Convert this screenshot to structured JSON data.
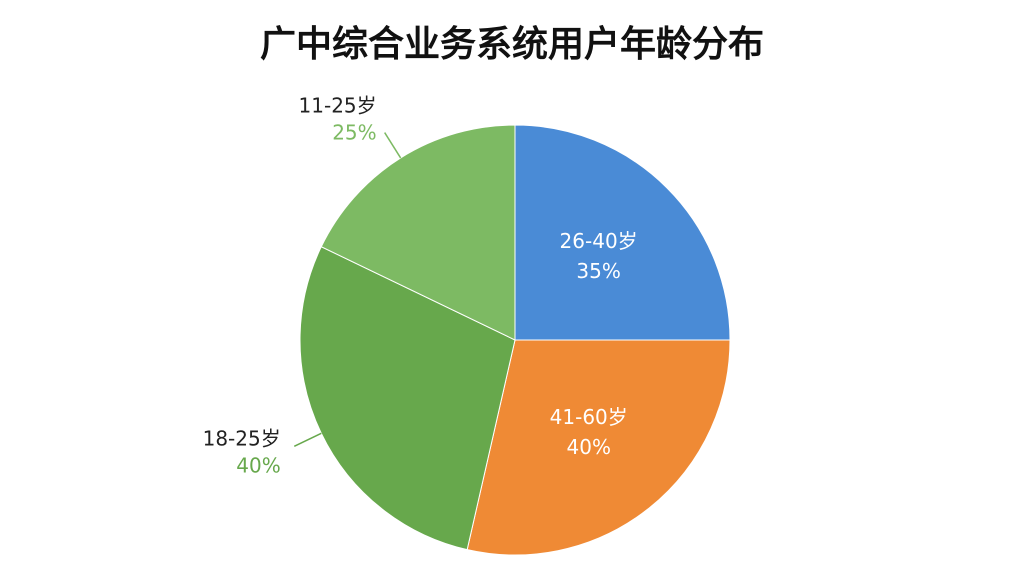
{
  "chart_data": {
    "type": "pie",
    "title": "广中综合业务系统用户年龄分布",
    "categories": [
      "26-40岁",
      "41-60岁",
      "18-25岁",
      "11-25岁"
    ],
    "values": [
      35,
      40,
      40,
      25
    ],
    "value_labels": [
      "35%",
      "40%",
      "40%",
      "25%"
    ],
    "colors": [
      "#4a8bd6",
      "#ef8a35",
      "#67a84c",
      "#7dba63"
    ]
  }
}
